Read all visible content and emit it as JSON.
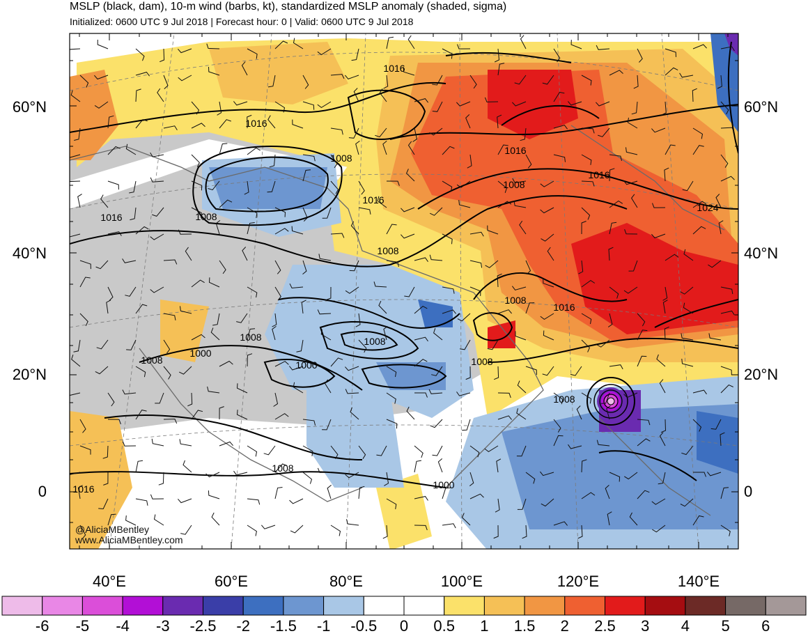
{
  "title": "MSLP (black, dam), 10-m wind (barbs, kt), standardized MSLP anomaly (shaded, sigma)",
  "subtitle": "Initialized: 0600 UTC 9 Jul 2018 | Forecast hour: 0 | Valid: 0600 UTC 9 Jul 2018",
  "lat_labels": [
    "60°N",
    "40°N",
    "20°N",
    "0"
  ],
  "lon_labels": [
    "40°E",
    "60°E",
    "80°E",
    "100°E",
    "120°E",
    "140°E"
  ],
  "isobar_labels": [
    "1016",
    "1016",
    "1016",
    "1016",
    "1016",
    "1016",
    "1016",
    "1016",
    "1024",
    "1008",
    "1008",
    "1008",
    "1008",
    "1008",
    "1008",
    "1008",
    "1008",
    "1008",
    "1008",
    "1008",
    "1000",
    "1000",
    "1000"
  ],
  "credit": {
    "handle": "@AliciaMBentley",
    "site": "www.AliciaMBentley.com"
  },
  "colorbar": {
    "labels": [
      "-6",
      "-5",
      "-4",
      "-3",
      "-2.5",
      "-2",
      "-1.5",
      "-1",
      "-0.5",
      "0",
      "0.5",
      "1",
      "1.5",
      "2",
      "2.5",
      "3",
      "4",
      "5",
      "6"
    ],
    "colors": [
      "#eebbe9",
      "#e987e6",
      "#db4ed9",
      "#b20fd6",
      "#6a2bb0",
      "#3a3ea8",
      "#3d6fc0",
      "#6d96d0",
      "#a9c7e6",
      "#ffffff",
      "#ffffff",
      "#fbe16a",
      "#f5c056",
      "#f19643",
      "#ef6031",
      "#e21b1b",
      "#a50d11",
      "#6c2a26",
      "#766966",
      "#a49898"
    ]
  }
}
